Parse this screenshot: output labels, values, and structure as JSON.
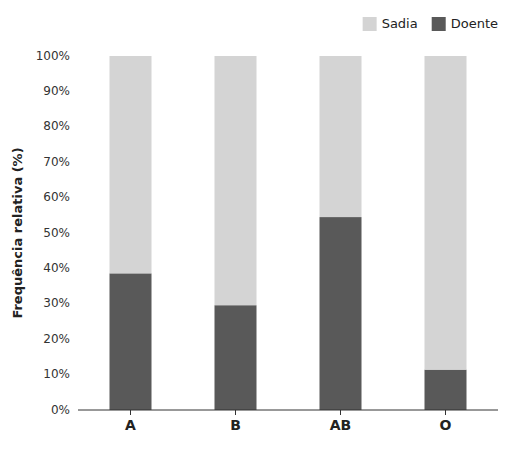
{
  "chart_data": {
    "type": "bar",
    "stacked": true,
    "ylabel": "Frequência relativa (%)",
    "categories": [
      "A",
      "B",
      "AB",
      "O"
    ],
    "series": [
      {
        "name": "Doente",
        "color": "#595959",
        "values": [
          38.6,
          29.6,
          54.5,
          11.4
        ]
      },
      {
        "name": "Sadia",
        "color": "#d4d4d4",
        "values": [
          61.4,
          70.4,
          45.5,
          88.6
        ]
      }
    ],
    "ylim": [
      0,
      100
    ],
    "yticks": [
      {
        "value": 0,
        "label": "0%"
      },
      {
        "value": 10,
        "label": "10%"
      },
      {
        "value": 20,
        "label": "20%"
      },
      {
        "value": 30,
        "label": "30%"
      },
      {
        "value": 40,
        "label": "40%"
      },
      {
        "value": 50,
        "label": "50%"
      },
      {
        "value": 60,
        "label": "60%"
      },
      {
        "value": 70,
        "label": "70%"
      },
      {
        "value": 80,
        "label": "80%"
      },
      {
        "value": 90,
        "label": "90%"
      },
      {
        "value": 100,
        "label": "100%"
      }
    ],
    "grid": false,
    "legend": "upper right"
  }
}
